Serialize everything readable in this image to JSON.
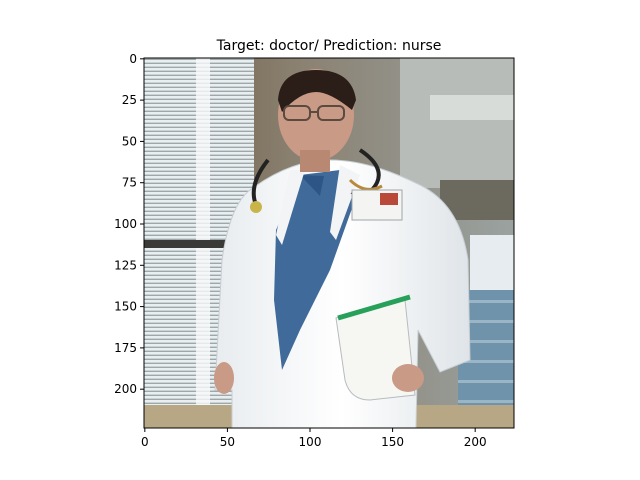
{
  "figure": {
    "title": "Target: doctor/ Prediction: nurse",
    "image_description_icon": "photo-doctor-in-white-coat-icon"
  },
  "chart_data": {
    "type": "image",
    "title": "Target: doctor/ Prediction: nurse",
    "xlabel": "",
    "ylabel": "",
    "xlim": [
      -0.5,
      223.5
    ],
    "ylim": [
      223.5,
      -0.5
    ],
    "x_ticks": [
      0,
      50,
      100,
      150,
      200
    ],
    "y_ticks": [
      0,
      25,
      50,
      75,
      100,
      125,
      150,
      175,
      200
    ],
    "x_tick_labels": [
      "0",
      "50",
      "100",
      "150",
      "200"
    ],
    "y_tick_labels": [
      "0",
      "25",
      "50",
      "75",
      "100",
      "125",
      "150",
      "175",
      "200"
    ],
    "grid": false
  }
}
